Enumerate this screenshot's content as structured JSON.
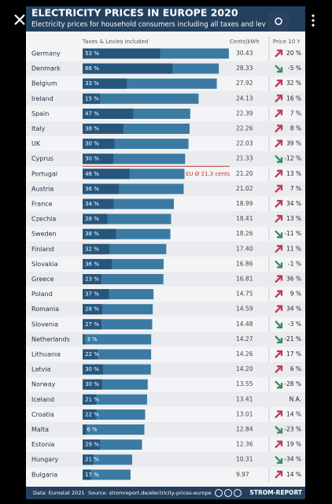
{
  "header": {
    "title": "ELECTRICITY PRICES IN EUROPE 2020",
    "subtitle": "Electricity prices for household consumers including all taxes and lev"
  },
  "chart_data": {
    "type": "bar",
    "orientation": "horizontal",
    "column_headers": {
      "tax": "Taxes & Levies included",
      "price": "Cents|kWh",
      "change": "Price 10 Y"
    },
    "categories": [
      "Germany",
      "Denmark",
      "Belgium",
      "Ireland",
      "Spain",
      "Italy",
      "UK",
      "Cyprus",
      "Portugal",
      "Austria",
      "France",
      "Czechia",
      "Sweden",
      "Finland",
      "Slovakia",
      "Greece",
      "Poland",
      "Romania",
      "Slovenia",
      "Netherlands",
      "Lithuania",
      "Latvia",
      "Norway",
      "Iceland",
      "Croatia",
      "Malta",
      "Estonia",
      "Hungary",
      "Bulgaria"
    ],
    "values": [
      30.43,
      28.33,
      27.92,
      24.13,
      22.39,
      22.26,
      22.03,
      21.33,
      21.2,
      21.02,
      18.99,
      18.41,
      18.26,
      17.4,
      16.86,
      16.81,
      14.75,
      14.59,
      14.48,
      14.27,
      14.26,
      14.2,
      13.55,
      13.41,
      13.01,
      12.84,
      12.36,
      10.31,
      9.97
    ],
    "value_labels": [
      "30.43",
      "28.33",
      "27.92",
      "24.13",
      "22.39",
      "22.26",
      "22.03",
      "21.33",
      "21.20",
      "21.02",
      "18.99",
      "18.41",
      "18.26",
      "17.40",
      "16.86",
      "16.81",
      "14.75",
      "14.59",
      "14.48",
      "14.27",
      "14.26",
      "14.20",
      "13.55",
      "13.41",
      "13.01",
      "12.84",
      "12.36",
      "10.31",
      "9.97"
    ],
    "color": "#3b7ba3",
    "tax_color": "#27567c",
    "tax_share": {
      "values": [
        53,
        66,
        33,
        15,
        47,
        38,
        30,
        30,
        46,
        36,
        34,
        28,
        38,
        32,
        36,
        23,
        37,
        28,
        27,
        3,
        22,
        30,
        30,
        21,
        22,
        6,
        29,
        21,
        17
      ],
      "value_labels": [
        "53 %",
        "66 %",
        "33 %",
        "15 %",
        "47 %",
        "38 %",
        "30 %",
        "30 %",
        "46 %",
        "36 %",
        "34 %",
        "28 %",
        "38 %",
        "32 %",
        "36 %",
        "23 %",
        "37 %",
        "28 %",
        "27 %",
        "3 %",
        "22 %",
        "30 %",
        "30 %",
        "21 %",
        "22 %",
        "6 %",
        "29 %",
        "21 %",
        "17 %"
      ]
    },
    "price_change_10y": {
      "values": [
        20,
        -5,
        32,
        16,
        7,
        8,
        39,
        -12,
        13,
        7,
        34,
        13,
        -11,
        11,
        -1,
        36,
        9,
        34,
        -3,
        -21,
        17,
        6,
        -28,
        null,
        14,
        -23,
        19,
        -34,
        14
      ],
      "value_labels": [
        "20 %",
        "-5 %",
        "32 %",
        "16 %",
        "7 %",
        "8 %",
        "39 %",
        "-12 %",
        "13 %",
        "7 %",
        "34 %",
        "13 %",
        "-11 %",
        "11 %",
        "-1 %",
        "36 %",
        "9 %",
        "34 %",
        "-3 %",
        "-21 %",
        "17 %",
        "6 %",
        "-28 %",
        "N.A.",
        "14 %",
        "-23 %",
        "19 %",
        "-34 %",
        "14 %"
      ],
      "up_color": "#c2375c",
      "down_color": "#3d8a5c"
    },
    "annotation": {
      "value": 21.3,
      "label": "EU Ø 21,3 cents",
      "color": "#c0392b"
    }
  },
  "footer": {
    "data": "Data: Eurostat 2021",
    "source": "Source: stromreport.de/electricity-prices-europe",
    "brand": "STROM-REPORT"
  }
}
